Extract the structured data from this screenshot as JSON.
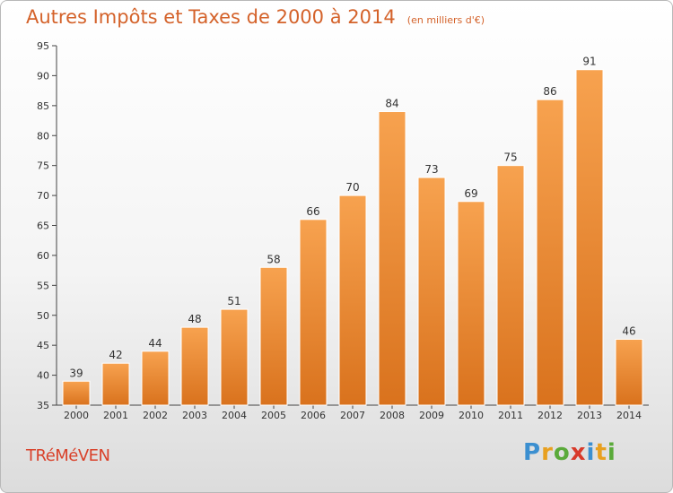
{
  "title": "Autres Impôts et Taxes de 2000 à 2014",
  "subtitle": "(en milliers d'€)",
  "commune": "TRéMéVEN",
  "logo": {
    "text": "Proxiti",
    "letters": [
      {
        "char": "P",
        "color": "#3b8fd0"
      },
      {
        "char": "r",
        "color": "#e8a020"
      },
      {
        "char": "o",
        "color": "#5aaa3a"
      },
      {
        "char": "x",
        "color": "#d83a2a"
      },
      {
        "char": "i",
        "color": "#3b8fd0"
      },
      {
        "char": "t",
        "color": "#e8a020"
      },
      {
        "char": "i",
        "color": "#5aaa3a"
      }
    ]
  },
  "colors": {
    "bar_top": "#f7a24f",
    "bar_bottom": "#d9721d",
    "title": "#d4622a",
    "commune": "#d9412a"
  },
  "chart_data": {
    "type": "bar",
    "categories": [
      "2000",
      "2001",
      "2002",
      "2003",
      "2004",
      "2005",
      "2006",
      "2007",
      "2008",
      "2009",
      "2010",
      "2011",
      "2012",
      "2013",
      "2014"
    ],
    "values": [
      39,
      42,
      44,
      48,
      51,
      58,
      66,
      70,
      84,
      73,
      69,
      75,
      86,
      91,
      46
    ],
    "title": "Autres Impôts et Taxes de 2000 à 2014",
    "subtitle": "(en milliers d'€)",
    "ylim": [
      35,
      95
    ],
    "yticks": [
      35,
      40,
      45,
      50,
      55,
      60,
      65,
      70,
      75,
      80,
      85,
      90,
      95
    ],
    "grid": false,
    "legend": "none"
  }
}
